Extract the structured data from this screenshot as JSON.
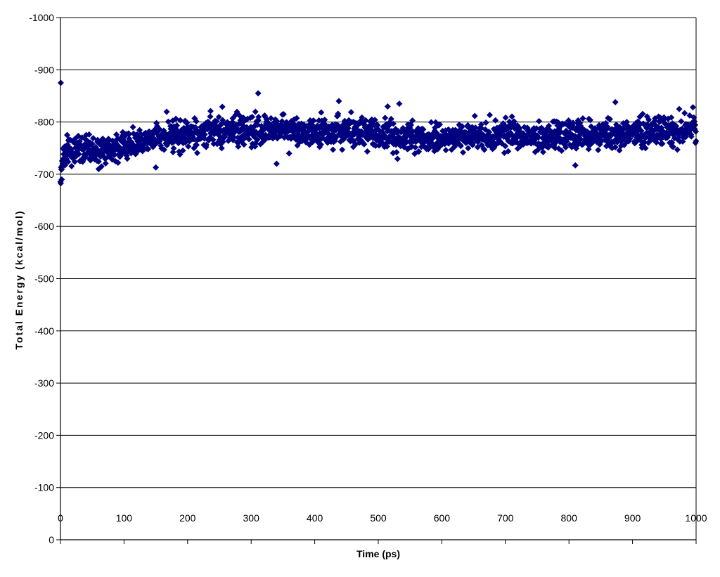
{
  "chart_data": {
    "type": "scatter",
    "title": "",
    "xlabel": "Time (ps)",
    "ylabel": "Total Energy (kcal/mol)",
    "xlim": [
      0,
      1000
    ],
    "ylim": [
      0,
      -1000
    ],
    "y_axis_note": "values increase downward visually in magnitude: axis labeled 0 at bottom to -1000 at top",
    "x_ticks": [
      "0",
      "100",
      "200",
      "300",
      "400",
      "500",
      "600",
      "700",
      "800",
      "900",
      "1000"
    ],
    "y_ticks": [
      "0",
      "-100",
      "-200",
      "-300",
      "-400",
      "-500",
      "-600",
      "-700",
      "-800",
      "-900",
      "-1000"
    ],
    "grid": "horizontal",
    "marker": "diamond",
    "marker_color": "#000080",
    "series": [
      {
        "trend_x": [
          0,
          5,
          20,
          50,
          90,
          120,
          160,
          200,
          250,
          300,
          350,
          400,
          450,
          500,
          550,
          600,
          650,
          700,
          750,
          800,
          850,
          900,
          950,
          1000
        ],
        "trend_y": [
          -700,
          -735,
          -745,
          -748,
          -752,
          -760,
          -770,
          -778,
          -782,
          -784,
          -786,
          -782,
          -780,
          -775,
          -772,
          -770,
          -772,
          -774,
          -775,
          -776,
          -776,
          -778,
          -782,
          -785
        ],
        "noise_amplitude": 18,
        "count": 2000,
        "outliers": [
          {
            "x": 0.5,
            "y": -875
          },
          {
            "x": 311,
            "y": -855
          },
          {
            "x": 438,
            "y": -840
          },
          {
            "x": 533,
            "y": -835
          },
          {
            "x": 873,
            "y": -838
          },
          {
            "x": 60,
            "y": -710
          },
          {
            "x": 150,
            "y": -713
          },
          {
            "x": 340,
            "y": -720
          },
          {
            "x": 810,
            "y": -717
          },
          {
            "x": 2,
            "y": -690
          }
        ]
      }
    ]
  }
}
